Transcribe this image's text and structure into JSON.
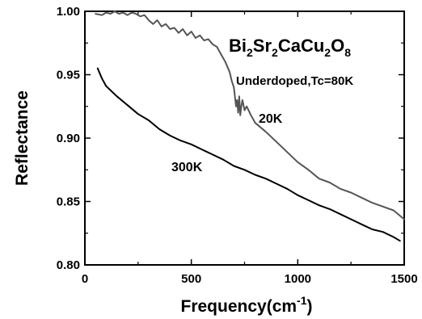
{
  "chart_data": {
    "type": "line",
    "xlabel": "Frequency(cm",
    "xlabel_sup": "-1",
    "xlabel_close": ")",
    "ylabel": "Reflectance",
    "xlim": [
      0,
      1500
    ],
    "ylim": [
      0.8,
      1.0
    ],
    "xticks": [
      0,
      500,
      1000,
      1500
    ],
    "xtick_labels": [
      "0",
      "500",
      "1000",
      "1500"
    ],
    "yticks": [
      0.8,
      0.85,
      0.9,
      0.95,
      1.0
    ],
    "ytick_labels": [
      "0.80",
      "0.85",
      "0.90",
      "0.95",
      "1.00"
    ],
    "grid": false,
    "compound": {
      "parts": [
        {
          "text": "Bi",
          "sub": "2"
        },
        {
          "text": "Sr",
          "sub": "2"
        },
        {
          "text": "CaCu",
          "sub": "2"
        },
        {
          "text": "O",
          "sub": "8"
        }
      ]
    },
    "annotations": {
      "doping": "Underdoped,Tc=80K",
      "label_20k": "20K",
      "label_300k": "300K"
    },
    "series": [
      {
        "name": "20K",
        "color": "#555555",
        "x": [
          50,
          80,
          100,
          120,
          140,
          160,
          180,
          200,
          220,
          240,
          260,
          280,
          300,
          320,
          340,
          360,
          380,
          400,
          420,
          440,
          460,
          480,
          500,
          520,
          540,
          560,
          580,
          600,
          620,
          640,
          660,
          680,
          690,
          700,
          710,
          715,
          720,
          725,
          730,
          735,
          740,
          750,
          760,
          780,
          800,
          850,
          900,
          950,
          1000,
          1050,
          1100,
          1150,
          1200,
          1250,
          1300,
          1350,
          1400,
          1450,
          1500
        ],
        "y": [
          0.998,
          0.997,
          0.999,
          0.998,
          1.0,
          0.998,
          0.999,
          0.997,
          0.999,
          0.998,
          0.996,
          0.997,
          0.993,
          0.99,
          0.993,
          0.988,
          0.99,
          0.986,
          0.987,
          0.983,
          0.986,
          0.981,
          0.984,
          0.979,
          0.981,
          0.977,
          0.978,
          0.974,
          0.972,
          0.966,
          0.96,
          0.952,
          0.945,
          0.94,
          0.925,
          0.93,
          0.92,
          0.933,
          0.918,
          0.925,
          0.93,
          0.922,
          0.925,
          0.918,
          0.912,
          0.905,
          0.897,
          0.889,
          0.881,
          0.875,
          0.868,
          0.865,
          0.86,
          0.857,
          0.853,
          0.849,
          0.846,
          0.843,
          0.836
        ]
      },
      {
        "name": "300K",
        "color": "#000000",
        "x": [
          60,
          80,
          100,
          150,
          200,
          250,
          300,
          350,
          400,
          450,
          500,
          550,
          600,
          650,
          700,
          750,
          800,
          850,
          900,
          950,
          1000,
          1050,
          1100,
          1150,
          1200,
          1250,
          1300,
          1350,
          1400,
          1450,
          1480
        ],
        "y": [
          0.955,
          0.947,
          0.941,
          0.933,
          0.926,
          0.919,
          0.914,
          0.907,
          0.902,
          0.898,
          0.895,
          0.891,
          0.887,
          0.883,
          0.878,
          0.875,
          0.871,
          0.868,
          0.864,
          0.86,
          0.855,
          0.851,
          0.847,
          0.844,
          0.84,
          0.836,
          0.832,
          0.828,
          0.826,
          0.822,
          0.819
        ]
      }
    ]
  }
}
